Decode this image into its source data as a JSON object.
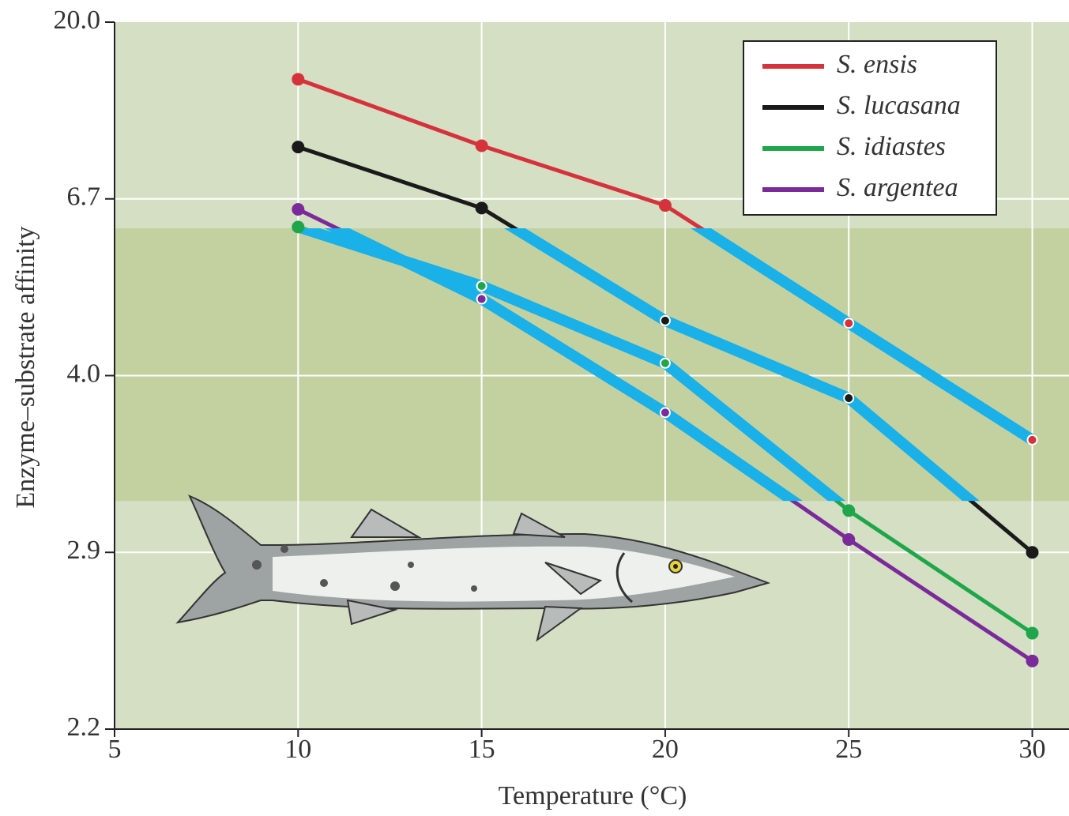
{
  "chart_data": {
    "type": "line",
    "x_label": "Temperature (°C)",
    "y_label": "Enzyme–substrate affinity",
    "x": [
      10,
      15,
      20,
      25,
      30
    ],
    "series": [
      {
        "name": "S. ensis",
        "color": "#d6323c",
        "values": [
          15.7,
          10.7,
          6.6,
          4.8,
          3.6
        ]
      },
      {
        "name": "S. lucasana",
        "color": "#1a1a1a",
        "values": [
          10.6,
          6.56,
          4.84,
          3.86,
          2.9
        ]
      },
      {
        "name": "S. idiastes",
        "color": "#1fa64a",
        "values": [
          6.27,
          5.37,
          4.19,
          3.16,
          2.58
        ]
      },
      {
        "name": "S. argentea",
        "color": "#7b2a9a",
        "values": [
          6.54,
          5.17,
          3.77,
          2.98,
          2.47
        ]
      }
    ],
    "xlim": [
      5,
      31
    ],
    "xticks": [
      5,
      10,
      15,
      20,
      25,
      30
    ],
    "ylim": [
      2.2,
      20
    ],
    "yticks": [
      2.2,
      2.9,
      {
        "value": 4,
        "label": "4.0"
      },
      6.7,
      {
        "value": 20,
        "label": "20.0"
      }
    ],
    "y_scale": "piecewise-even-ticks",
    "grid": true,
    "grid_color": "#ffffff",
    "background_color": "#d4dfc4",
    "highlight_range": [
      3.22,
      6.25
    ],
    "highlight_fill": "#c3d1a1",
    "highlight_line_color": "#1ab0e8",
    "legend": "upper right"
  }
}
